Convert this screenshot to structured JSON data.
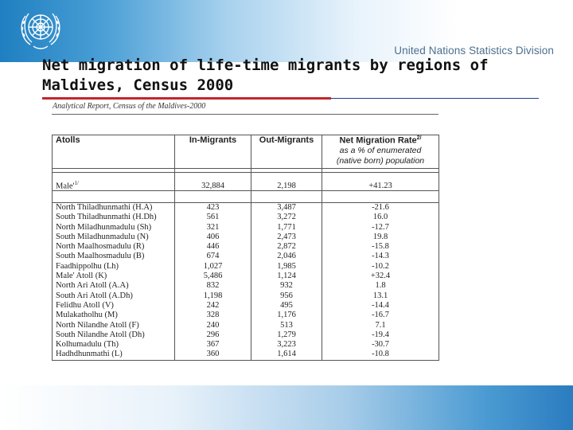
{
  "header": {
    "organization": "United Nations Statistics Division",
    "emblem": "un-emblem-icon",
    "accent_color": "#1f7fc0"
  },
  "slide": {
    "title_line1": "Net migration of life-time migrants by regions of",
    "title_line2": "Maldives, Census 2000",
    "rule_color": "#c0272d"
  },
  "report": {
    "header": "Analytical Report, Census of the Maldives-2000",
    "columns": {
      "atolls": "Atolls",
      "in_migrants": "In-Migrants",
      "out_migrants": "Out-Migrants",
      "rate_title": "Net Migration Rate",
      "rate_sup": "2/",
      "rate_sub1": "as a % of enumerated",
      "rate_sub2": "(native born) population"
    },
    "male_row": {
      "name": "Male'",
      "sup": "1/",
      "in": "32,884",
      "out": "2,198",
      "rate": "+41.23"
    },
    "rows": [
      {
        "name": "North Thiladhunmathi  (H.A)",
        "in": "423",
        "out": "3,487",
        "rate": "-21.6"
      },
      {
        "name": "South Thiladhunmathi (H.Dh)",
        "in": "561",
        "out": "3,272",
        "rate": "16.0"
      },
      {
        "name": "North Miladhunmadulu (Sh)",
        "in": "321",
        "out": "1,771",
        "rate": "-12.7"
      },
      {
        "name": "South Miladhunmadulu (N)",
        "in": "406",
        "out": "2,473",
        "rate": "19.8"
      },
      {
        "name": "North Maalhosmadulu (R)",
        "in": "446",
        "out": "2,872",
        "rate": "-15.8"
      },
      {
        "name": "South Maalhosmadulu (B)",
        "in": "674",
        "out": "2,046",
        "rate": "-14.3"
      },
      {
        "name": "Faadhippolhu (Lh)",
        "in": "1,027",
        "out": "1,985",
        "rate": "-10.2"
      },
      {
        "name": "Male' Atoll (K)",
        "in": "5,486",
        "out": "1,124",
        "rate": "+32.4"
      },
      {
        "name": "North Ari Atoll (A.A)",
        "in": "832",
        "out": "932",
        "rate": "1.8"
      },
      {
        "name": "South Ari Atoll (A.Dh)",
        "in": "1,198",
        "out": "956",
        "rate": "13.1"
      },
      {
        "name": "Felidhu Atoll (V)",
        "in": "242",
        "out": "495",
        "rate": "-14.4"
      },
      {
        "name": "Mulakatholhu (M)",
        "in": "328",
        "out": "1,176",
        "rate": "-16.7"
      },
      {
        "name": "North Nilandhe Atoll (F)",
        "in": "240",
        "out": "513",
        "rate": "7.1"
      },
      {
        "name": "South Nilandhe Atoll (Dh)",
        "in": "296",
        "out": "1,279",
        "rate": "-19.4"
      },
      {
        "name": "Kolhumadulu (Th)",
        "in": "367",
        "out": "3,223",
        "rate": "-30.7"
      },
      {
        "name": "Hadhdhunmathi (L)",
        "in": "360",
        "out": "1,614",
        "rate": "-10.8"
      }
    ]
  }
}
